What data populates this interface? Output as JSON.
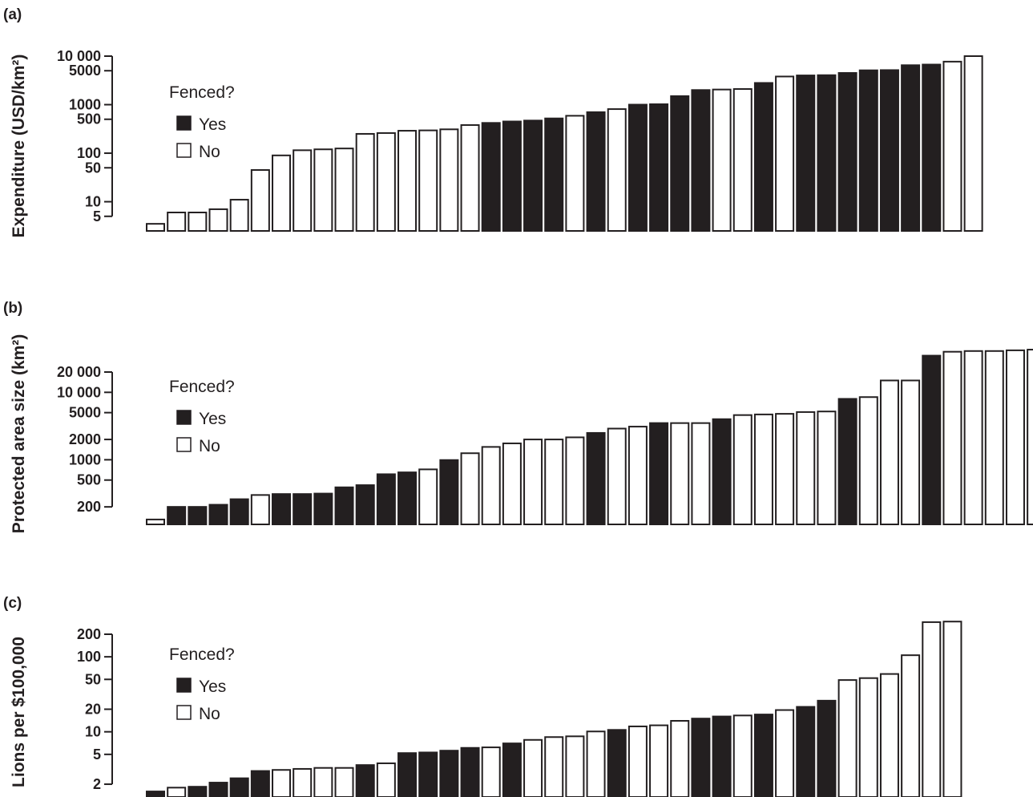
{
  "colors": {
    "fenced_yes": "#231f20",
    "fenced_no": "#ffffff",
    "outline": "#231f20"
  },
  "legend": {
    "title": "Fenced?",
    "yes_label": "Yes",
    "no_label": "No"
  },
  "chart_data": [
    {
      "type": "bar",
      "panel_label": "(a)",
      "ylabel": "Expenditure (USD/km²)",
      "yscale": "log",
      "ylim": [
        2.5,
        12000
      ],
      "yticks": [
        5,
        10,
        50,
        100,
        500,
        1000,
        5000,
        10000
      ],
      "ytick_labels": [
        "5",
        "10",
        "50",
        "100",
        "500",
        "1000",
        "5000",
        "10 000"
      ],
      "legend_position": "top-left",
      "values": [
        3.5,
        6,
        6,
        7,
        11,
        45,
        90,
        115,
        120,
        125,
        250,
        260,
        290,
        295,
        310,
        380,
        420,
        450,
        470,
        520,
        590,
        700,
        810,
        1000,
        1020,
        1500,
        2000,
        2050,
        2100,
        2800,
        3800,
        4000,
        4050,
        4500,
        5100,
        5150,
        6500,
        6700,
        7700,
        10000
      ],
      "fenced": [
        0,
        0,
        0,
        0,
        0,
        0,
        0,
        0,
        0,
        0,
        0,
        0,
        0,
        0,
        0,
        0,
        1,
        1,
        1,
        1,
        0,
        1,
        0,
        1,
        1,
        1,
        1,
        0,
        0,
        1,
        0,
        1,
        1,
        1,
        1,
        1,
        1,
        1,
        0,
        0
      ]
    },
    {
      "type": "bar",
      "panel_label": "(b)",
      "ylabel": "Protected area size (km²)",
      "yscale": "log",
      "ylim": [
        110,
        70000
      ],
      "yticks": [
        200,
        500,
        1000,
        2000,
        5000,
        10000,
        20000
      ],
      "ytick_labels": [
        "200",
        "500",
        "1000",
        "2000",
        "5000",
        "10 000",
        "20 000"
      ],
      "legend_position": "top-left",
      "values": [
        130,
        200,
        200,
        215,
        260,
        300,
        310,
        310,
        315,
        390,
        420,
        610,
        650,
        720,
        990,
        1250,
        1550,
        1750,
        2000,
        2000,
        2150,
        2500,
        2900,
        3100,
        3500,
        3500,
        3500,
        4000,
        4600,
        4700,
        4800,
        5100,
        5200,
        8000,
        8500,
        15000,
        15000,
        35000,
        40000,
        41000,
        41000,
        42000,
        43000
      ],
      "fenced": [
        0,
        1,
        1,
        1,
        1,
        0,
        1,
        1,
        1,
        1,
        1,
        1,
        1,
        0,
        1,
        0,
        0,
        0,
        0,
        0,
        0,
        1,
        0,
        0,
        1,
        0,
        0,
        1,
        0,
        0,
        0,
        0,
        0,
        1,
        0,
        0,
        0,
        1,
        0,
        0,
        0,
        0,
        0
      ]
    },
    {
      "type": "bar",
      "panel_label": "(c)",
      "ylabel": "Lions per $100,000",
      "yscale": "log",
      "ylim": [
        1.35,
        360
      ],
      "yticks": [
        2,
        5,
        10,
        20,
        50,
        100,
        200
      ],
      "ytick_labels": [
        "2",
        "5",
        "10",
        "20",
        "50",
        "100",
        "200"
      ],
      "legend_position": "top-left",
      "values": [
        1.6,
        1.8,
        1.85,
        2.1,
        2.4,
        3.0,
        3.1,
        3.2,
        3.3,
        3.3,
        3.6,
        3.8,
        5.2,
        5.3,
        5.6,
        6.1,
        6.2,
        7.0,
        7.8,
        8.5,
        8.7,
        10.1,
        10.6,
        11.8,
        12.2,
        14.0,
        15.0,
        16.0,
        16.5,
        17.0,
        19.5,
        21.5,
        26.0,
        49.0,
        52.0,
        59.0,
        105.0,
        290.0,
        295.0
      ],
      "fenced": [
        1,
        0,
        1,
        1,
        1,
        1,
        0,
        0,
        0,
        0,
        1,
        0,
        1,
        1,
        1,
        1,
        0,
        1,
        0,
        0,
        0,
        0,
        1,
        0,
        0,
        0,
        1,
        1,
        0,
        1,
        0,
        1,
        1,
        0,
        0,
        0,
        0,
        0,
        0
      ]
    }
  ]
}
